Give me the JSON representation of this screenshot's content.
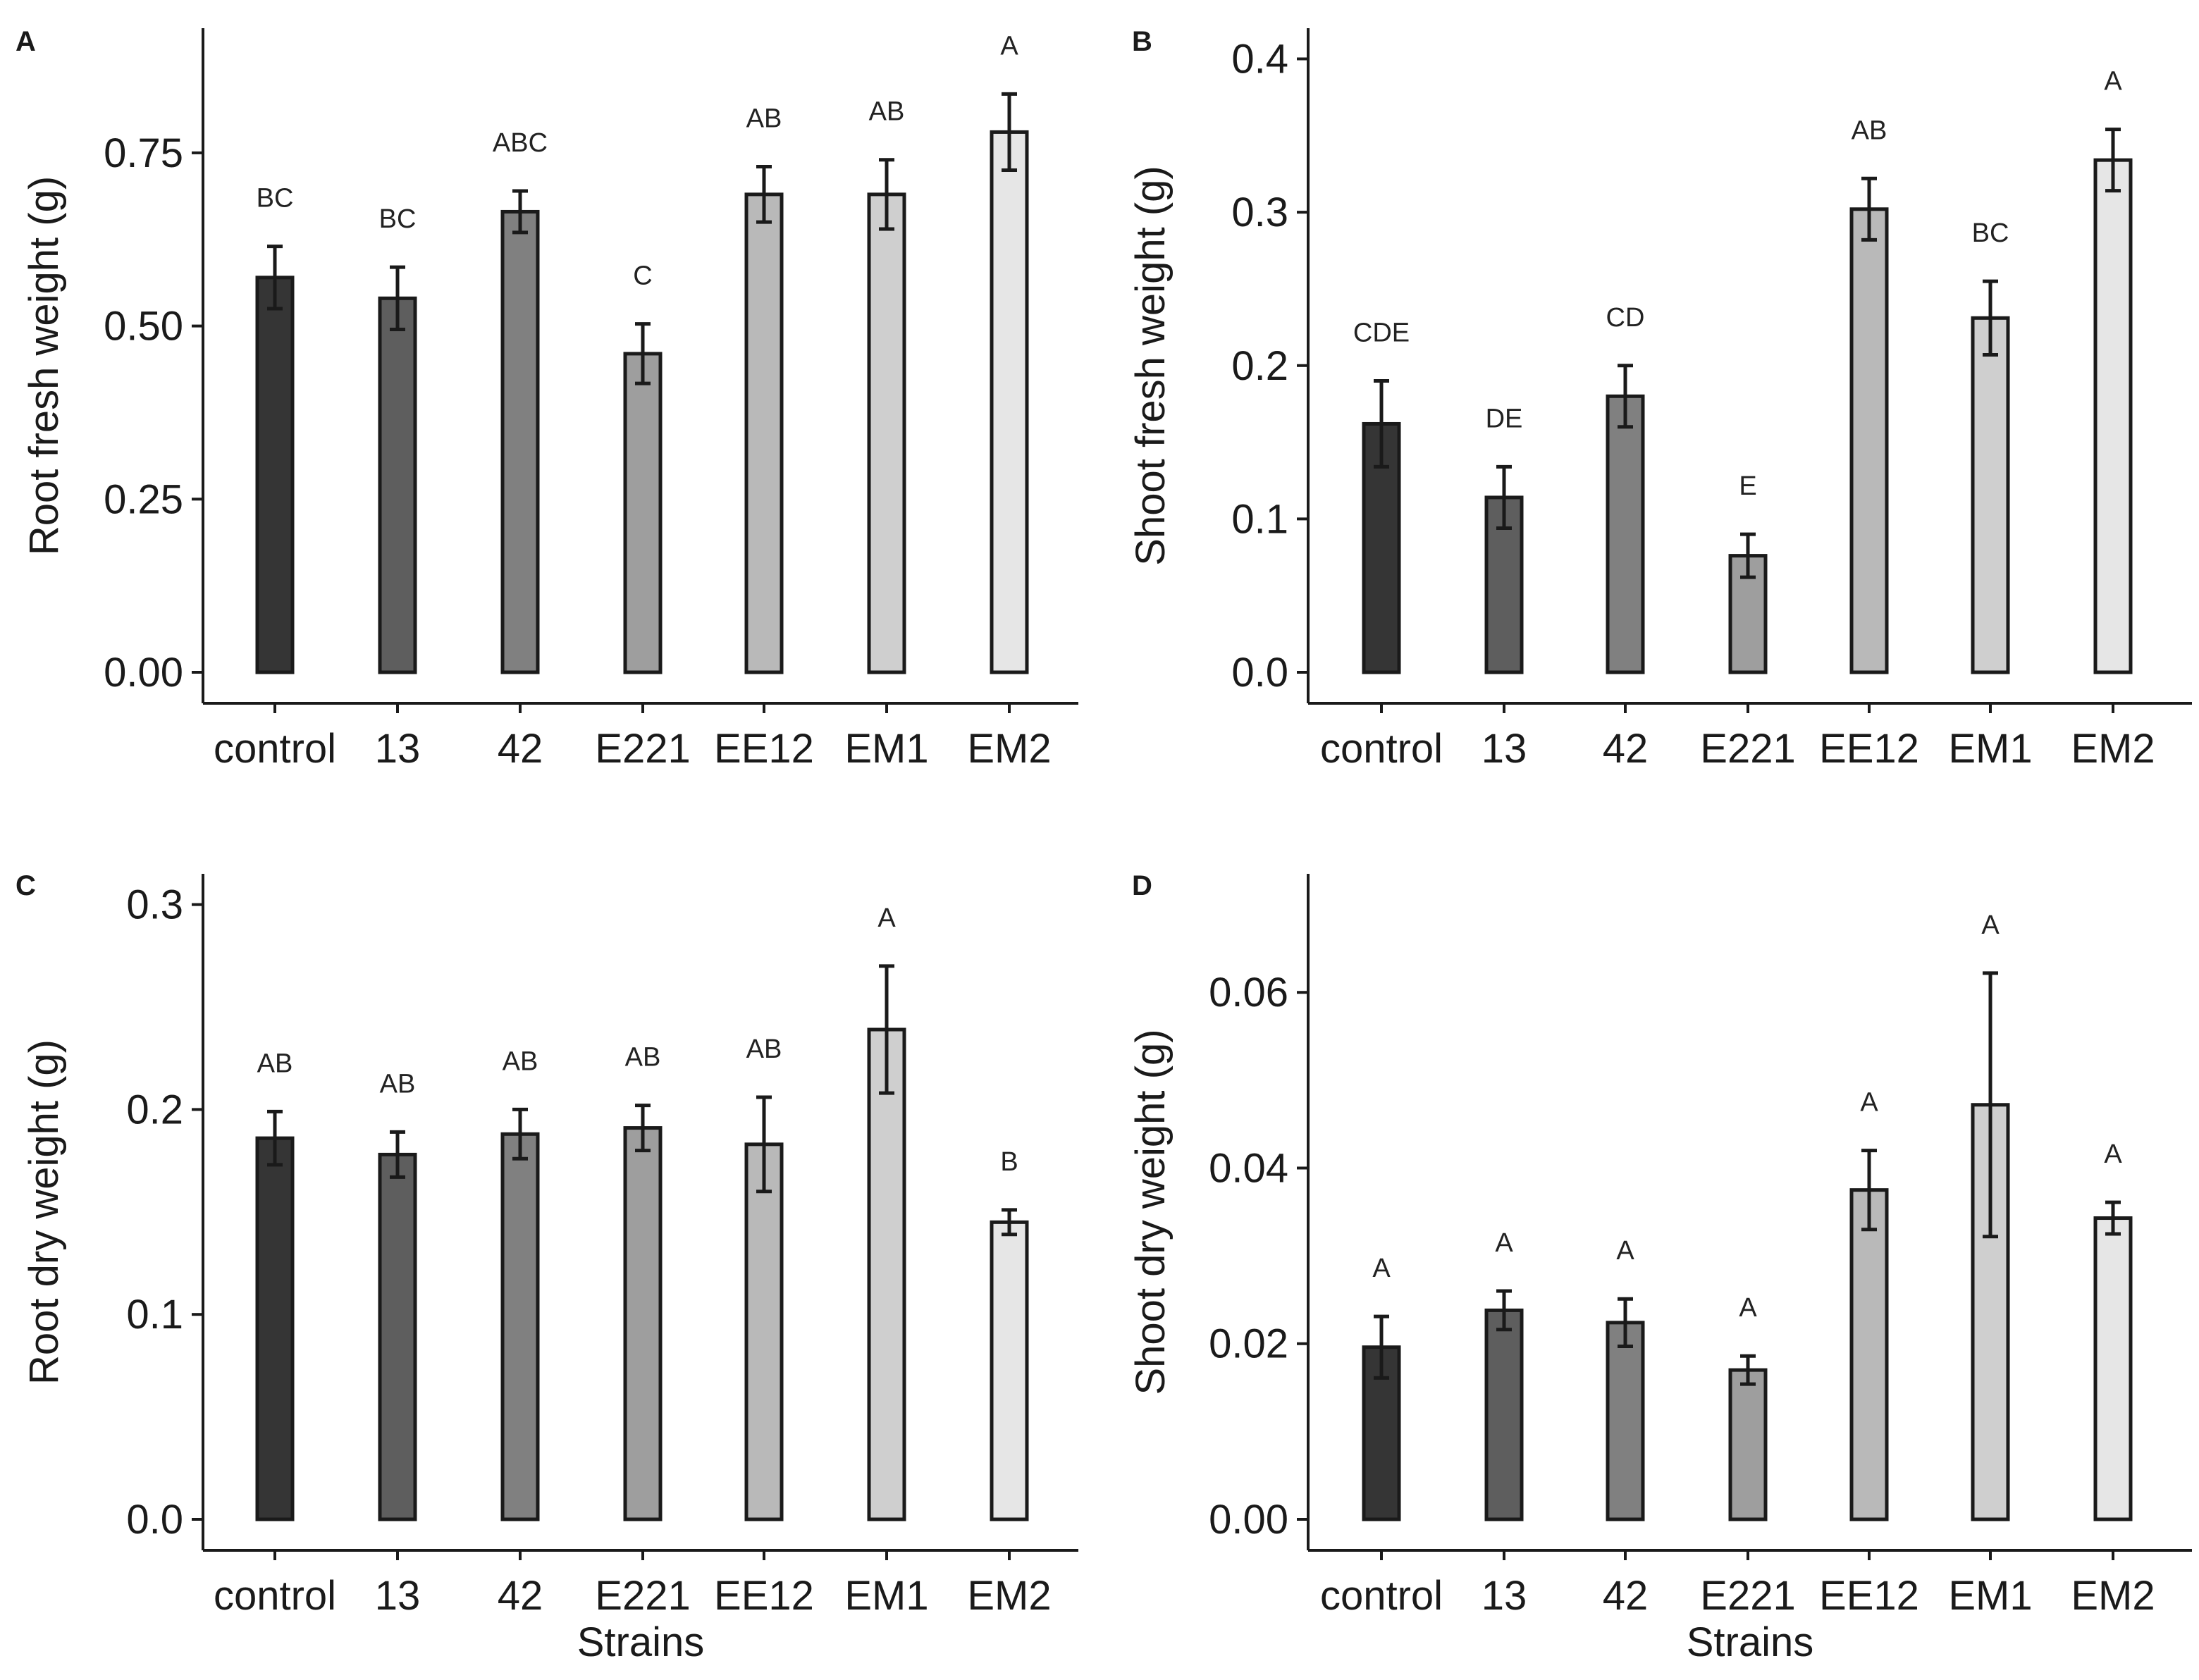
{
  "figure": {
    "strain_axis_title": "Strains"
  },
  "chart_data": [
    {
      "panel": "A",
      "type": "bar",
      "ylabel": "Root fresh weight (g)",
      "xlabel": "",
      "categories": [
        "control",
        "13",
        "42",
        "E221",
        "EE12",
        "EM1",
        "EM2"
      ],
      "values": [
        0.57,
        0.54,
        0.665,
        0.46,
        0.69,
        0.69,
        0.78
      ],
      "errors": [
        0.045,
        0.045,
        0.03,
        0.043,
        0.04,
        0.05,
        0.055
      ],
      "letters": [
        "BC",
        "BC",
        "ABC",
        "C",
        "AB",
        "AB",
        "A"
      ],
      "colors": [
        "#353535",
        "#5e5e5e",
        "#808080",
        "#9e9e9e",
        "#b9b9b9",
        "#cfcfcf",
        "#e6e6e6"
      ],
      "ylim": [
        0,
        0.93
      ],
      "yticks": [
        0,
        0.25,
        0.5,
        0.75
      ],
      "ytick_labels": [
        "0.00",
        "0.25",
        "0.50",
        "0.75"
      ]
    },
    {
      "panel": "B",
      "type": "bar",
      "ylabel": "Shoot fresh weight (g)",
      "xlabel": "",
      "categories": [
        "control",
        "13",
        "42",
        "E221",
        "EE12",
        "EM1",
        "EM2"
      ],
      "values": [
        0.162,
        0.114,
        0.18,
        0.076,
        0.302,
        0.231,
        0.334
      ],
      "errors": [
        0.028,
        0.02,
        0.02,
        0.014,
        0.02,
        0.024,
        0.02
      ],
      "letters": [
        "CDE",
        "DE",
        "CD",
        "E",
        "AB",
        "BC",
        "A"
      ],
      "colors": [
        "#353535",
        "#5e5e5e",
        "#808080",
        "#9e9e9e",
        "#b9b9b9",
        "#cfcfcf",
        "#e6e6e6"
      ],
      "ylim": [
        0,
        0.42
      ],
      "yticks": [
        0,
        0.1,
        0.2,
        0.3,
        0.4
      ],
      "ytick_labels": [
        "0.0",
        "0.1",
        "0.2",
        "0.3",
        "0.4"
      ]
    },
    {
      "panel": "C",
      "type": "bar",
      "ylabel": "Root dry weight (g)",
      "xlabel": "Strains",
      "categories": [
        "control",
        "13",
        "42",
        "E221",
        "EE12",
        "EM1",
        "EM2"
      ],
      "values": [
        0.186,
        0.178,
        0.188,
        0.191,
        0.183,
        0.239,
        0.145
      ],
      "errors": [
        0.013,
        0.011,
        0.012,
        0.011,
        0.023,
        0.031,
        0.006
      ],
      "letters": [
        "AB",
        "AB",
        "AB",
        "AB",
        "AB",
        "A",
        "B"
      ],
      "colors": [
        "#353535",
        "#5e5e5e",
        "#808080",
        "#9e9e9e",
        "#b9b9b9",
        "#cfcfcf",
        "#e6e6e6"
      ],
      "ylim": [
        0,
        0.315
      ],
      "yticks": [
        0,
        0.1,
        0.2,
        0.3
      ],
      "ytick_labels": [
        "0.0",
        "0.1",
        "0.2",
        "0.3"
      ]
    },
    {
      "panel": "D",
      "type": "bar",
      "ylabel": "Shoot dry weight (g)",
      "xlabel": "Strains",
      "categories": [
        "control",
        "13",
        "42",
        "E221",
        "EE12",
        "EM1",
        "EM2"
      ],
      "values": [
        0.0196,
        0.0238,
        0.0224,
        0.017,
        0.0375,
        0.0472,
        0.0343
      ],
      "errors": [
        0.0035,
        0.0022,
        0.0027,
        0.0016,
        0.0045,
        0.015,
        0.0018
      ],
      "letters": [
        "A",
        "A",
        "A",
        "A",
        "A",
        "A",
        "A"
      ],
      "colors": [
        "#353535",
        "#5e5e5e",
        "#808080",
        "#9e9e9e",
        "#b9b9b9",
        "#cfcfcf",
        "#e6e6e6"
      ],
      "ylim": [
        0,
        0.0735
      ],
      "yticks": [
        0,
        0.02,
        0.04,
        0.06
      ],
      "ytick_labels": [
        "0.00",
        "0.02",
        "0.04",
        "0.06"
      ]
    }
  ]
}
